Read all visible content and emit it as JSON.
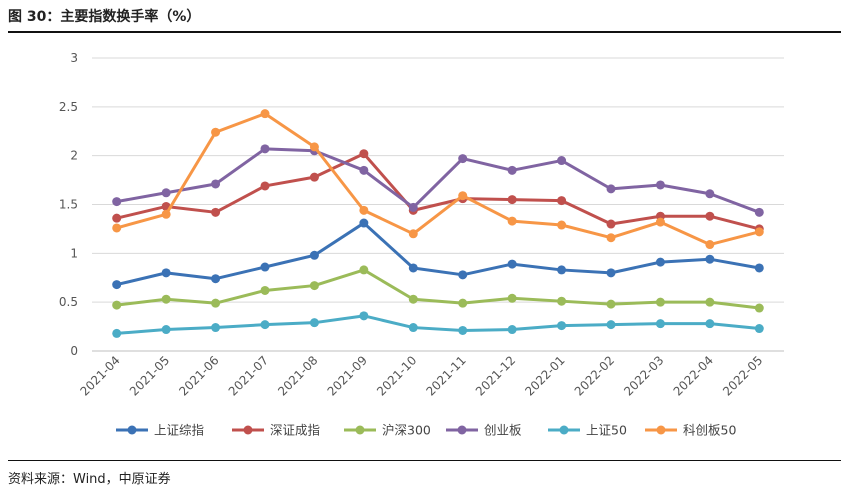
{
  "header": {
    "title": "图 30：主要指数换手率（%）"
  },
  "footer": {
    "source": "资料来源：Wind，中原证券"
  },
  "chart_data": {
    "type": "line",
    "title": "主要指数换手率（%）",
    "xlabel": "",
    "ylabel": "",
    "ylim": [
      0,
      3
    ],
    "yticks": [
      0,
      0.5,
      1,
      1.5,
      2,
      2.5,
      3
    ],
    "grid": "horizontal",
    "legend": "bottom",
    "categories": [
      "2021-04",
      "2021-05",
      "2021-06",
      "2021-07",
      "2021-08",
      "2021-09",
      "2021-10",
      "2021-11",
      "2021-12",
      "2022-01",
      "2022-02",
      "2022-03",
      "2022-04",
      "2022-05"
    ],
    "series": [
      {
        "name": "上证综指",
        "color": "#3b72b5",
        "values": [
          0.68,
          0.8,
          0.74,
          0.86,
          0.98,
          1.31,
          0.85,
          0.78,
          0.89,
          0.83,
          0.8,
          0.91,
          0.94,
          0.85
        ]
      },
      {
        "name": "深证成指",
        "color": "#c0504d",
        "values": [
          1.36,
          1.48,
          1.42,
          1.69,
          1.78,
          2.02,
          1.44,
          1.56,
          1.55,
          1.54,
          1.3,
          1.38,
          1.38,
          1.25
        ]
      },
      {
        "name": "沪深300",
        "color": "#9bbb59",
        "values": [
          0.47,
          0.53,
          0.49,
          0.62,
          0.67,
          0.83,
          0.53,
          0.49,
          0.54,
          0.51,
          0.48,
          0.5,
          0.5,
          0.44
        ]
      },
      {
        "name": "创业板",
        "color": "#8064a2",
        "values": [
          1.53,
          1.62,
          1.71,
          2.07,
          2.05,
          1.85,
          1.47,
          1.97,
          1.85,
          1.95,
          1.66,
          1.7,
          1.61,
          1.42
        ]
      },
      {
        "name": "上证50",
        "color": "#4bacc6",
        "values": [
          0.18,
          0.22,
          0.24,
          0.27,
          0.29,
          0.36,
          0.24,
          0.21,
          0.22,
          0.26,
          0.27,
          0.28,
          0.28,
          0.23
        ]
      },
      {
        "name": "科创板50",
        "color": "#f79646",
        "values": [
          1.26,
          1.4,
          2.24,
          2.43,
          2.09,
          1.44,
          1.2,
          1.59,
          1.33,
          1.29,
          1.16,
          1.32,
          1.09,
          1.22
        ]
      }
    ]
  }
}
